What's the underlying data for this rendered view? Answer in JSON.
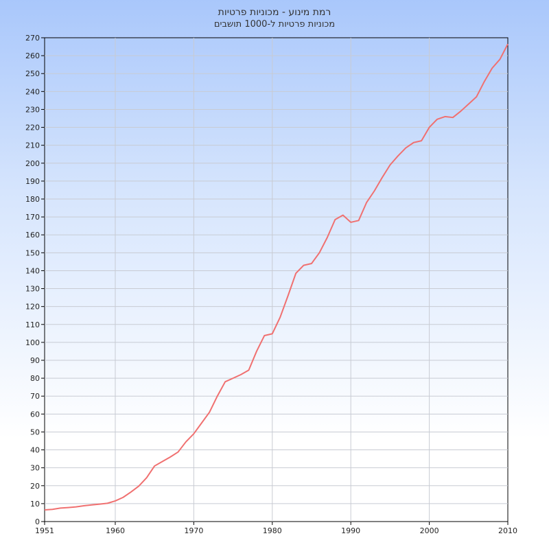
{
  "chart_data": {
    "type": "line",
    "title": "רמת מינוע - מכוניות פרטיות",
    "subtitle": "מכוניות פרטיות ל-1000 תושבים",
    "xlabel": "",
    "ylabel": "",
    "xlim": [
      1951,
      2010
    ],
    "ylim": [
      0,
      270
    ],
    "x_ticks": [
      1951,
      1960,
      1970,
      1980,
      1990,
      2000,
      2010
    ],
    "y_tick_step": 10,
    "grid": true,
    "legend": "none",
    "series": [
      {
        "color": "#f07070",
        "x": [
          1951,
          1952,
          1953,
          1954,
          1955,
          1956,
          1957,
          1958,
          1959,
          1960,
          1961,
          1962,
          1963,
          1964,
          1965,
          1966,
          1967,
          1968,
          1969,
          1970,
          1971,
          1972,
          1973,
          1974,
          1975,
          1976,
          1977,
          1978,
          1979,
          1980,
          1981,
          1982,
          1983,
          1984,
          1985,
          1986,
          1987,
          1988,
          1989,
          1990,
          1991,
          1992,
          1993,
          1994,
          1995,
          1996,
          1997,
          1998,
          1999,
          2000,
          2001,
          2002,
          2003,
          2004,
          2005,
          2006,
          2007,
          2008,
          2009,
          2010
        ],
        "y": [
          6.5,
          6.8,
          7.5,
          7.8,
          8.2,
          8.8,
          9.3,
          9.7,
          10.2,
          11.5,
          13.5,
          16.5,
          19.8,
          24.5,
          31.0,
          33.5,
          36.0,
          38.8,
          44.5,
          49.0,
          55.0,
          61.0,
          70.0,
          78.0,
          80.0,
          82.0,
          84.5,
          95.0,
          103.8,
          104.8,
          114.0,
          126.0,
          138.5,
          143.0,
          144.0,
          150.0,
          158.5,
          168.5,
          171.0,
          167.0,
          168.0,
          178.0,
          184.5,
          192.0,
          199.0,
          204.0,
          208.5,
          211.5,
          212.5,
          220.0,
          224.5,
          226.0,
          225.5,
          229.0,
          233.0,
          237.0,
          245.5,
          253.0,
          258.0,
          266.5
        ]
      }
    ]
  }
}
